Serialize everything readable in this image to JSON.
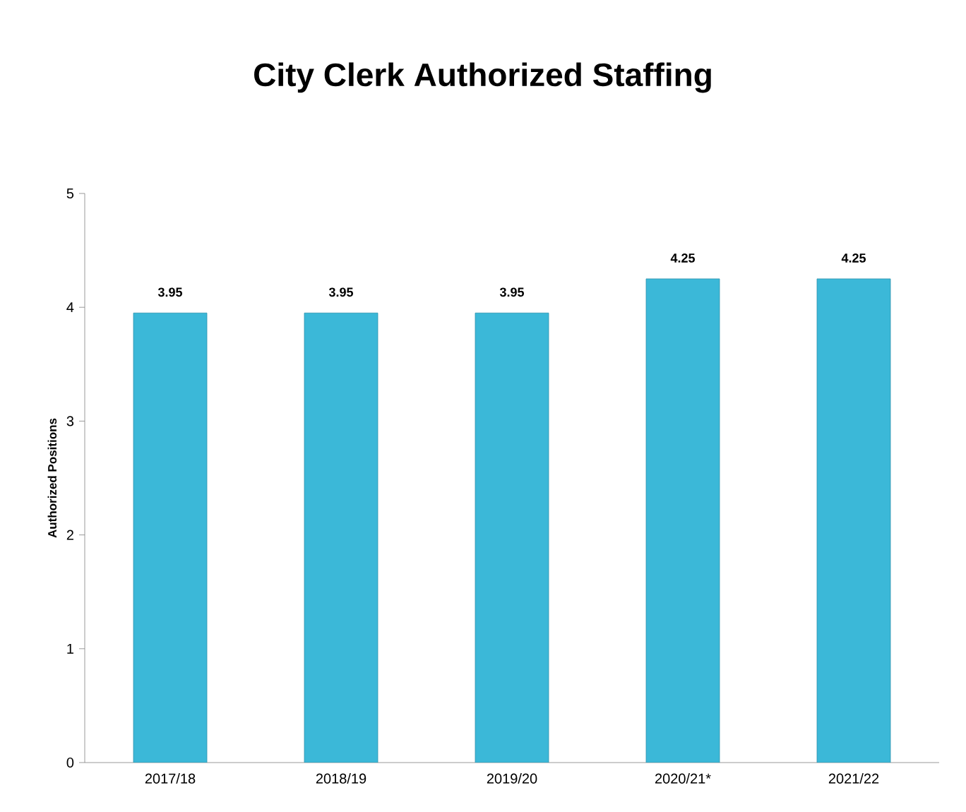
{
  "chart_data": {
    "type": "bar",
    "title": "City Clerk Authorized Staffing",
    "ylabel": "Authorized Positions",
    "categories": [
      "2017/18",
      "2018/19",
      "2019/20",
      "2020/21*",
      "2021/22"
    ],
    "values": [
      3.95,
      3.95,
      3.95,
      4.25,
      4.25
    ],
    "color": "#3bb8d8",
    "ylim": [
      0,
      5
    ],
    "yticks": [
      0,
      1,
      2,
      3,
      4,
      5
    ],
    "data_labels": true
  }
}
